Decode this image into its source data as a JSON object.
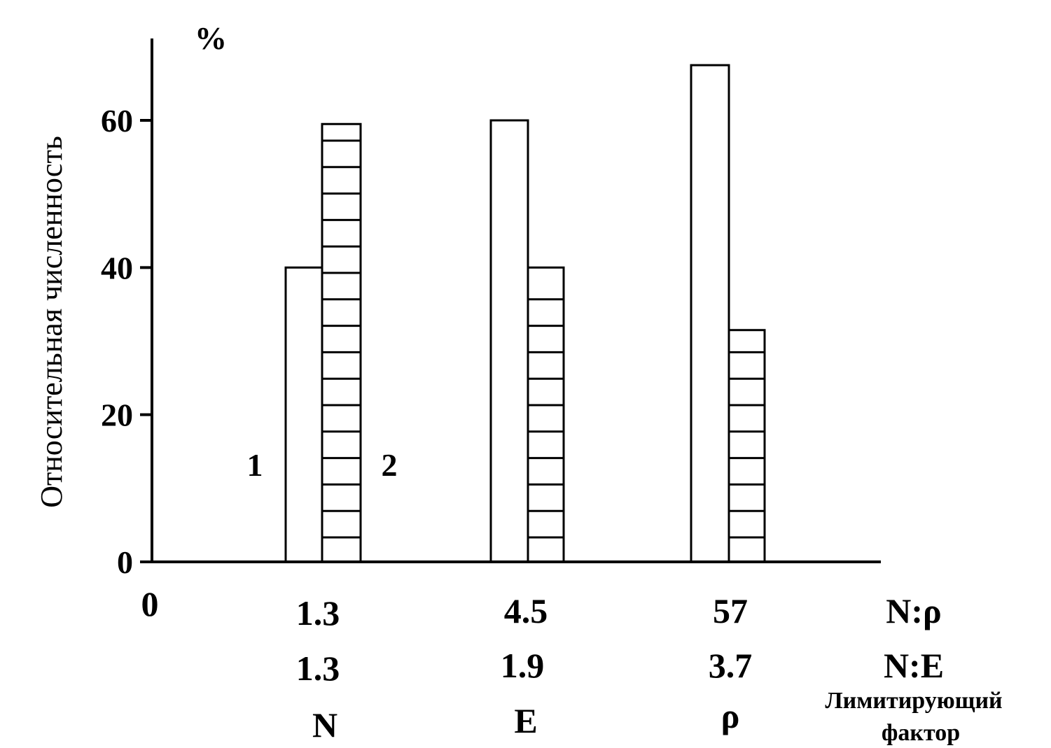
{
  "chart_data": {
    "type": "bar",
    "ylabel": "Относительная численность",
    "unit": "%",
    "ylim": [
      0,
      70
    ],
    "yticks": [
      0,
      20,
      40,
      60
    ],
    "origin_label": "0",
    "categories": [
      {
        "np": "1.3",
        "ne": "1.3",
        "factor": "N"
      },
      {
        "np": "4.5",
        "ne": "1.9",
        "factor": "E"
      },
      {
        "np": "57",
        "ne": "3.7",
        "factor": "ρ"
      }
    ],
    "row_labels": {
      "np": "N:ρ",
      "ne": "N:E",
      "factor_line1": "Лимитирующий",
      "factor_line2": "фактор"
    },
    "series": [
      {
        "name": "1",
        "pattern": "empty",
        "values": [
          40,
          60,
          67.5
        ]
      },
      {
        "name": "2",
        "pattern": "horizontal-hatch",
        "values": [
          59.5,
          40,
          31.5
        ]
      }
    ],
    "colors": {
      "stroke": "#000000",
      "fill": "#ffffff"
    }
  }
}
